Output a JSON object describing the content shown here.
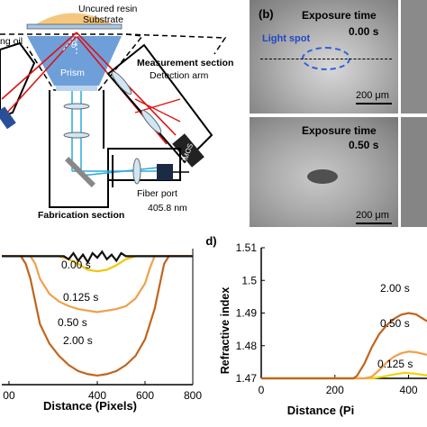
{
  "panel_a": {
    "labels": {
      "resin": "Uncured resin",
      "substrate": "Substrate",
      "oil": "ng oil",
      "theta": "θ",
      "prism": "Prism",
      "measurement": "Measurement section",
      "detection": "Detection arm",
      "cmos": "CMOS",
      "fabrication": "Fabrication section",
      "fiber": "Fiber port",
      "wavelength": "405.8 nm"
    }
  },
  "panel_b": {
    "letter": "(b)",
    "top": {
      "title": "Exposure time",
      "time": "0.00 s",
      "spot": "Light spot",
      "scale": "200 μm"
    },
    "bottom": {
      "title": "Exposure time",
      "time": "0.50 s",
      "scale": "200 μm"
    }
  },
  "chart_data": [
    {
      "type": "line",
      "xlabel": "Distance (Pixels)",
      "ylabel": "",
      "xticks": [
        "00",
        "400",
        "600",
        "800"
      ],
      "xlim": [
        0,
        800
      ],
      "series": [
        {
          "name": "0.00 s",
          "color": "#111111",
          "x": [
            0,
            80,
            160,
            240,
            260,
            280,
            300,
            320,
            340,
            360,
            380,
            400,
            420,
            440,
            460,
            480,
            500,
            520,
            540,
            560,
            640,
            720,
            800
          ],
          "y": [
            0,
            0,
            0,
            0,
            0,
            -0.02,
            0.02,
            -0.03,
            0.01,
            -0.04,
            0.02,
            -0.01,
            0.03,
            -0.02,
            0.01,
            -0.03,
            0.02,
            0,
            0,
            0,
            0,
            0,
            0
          ]
        },
        {
          "name": "0.125 s",
          "color": "#f2c500",
          "x": [
            0,
            80,
            160,
            240,
            280,
            320,
            360,
            400,
            440,
            480,
            520,
            560,
            640,
            720,
            800
          ],
          "y": [
            0,
            0,
            0,
            0,
            -0.02,
            -0.05,
            -0.09,
            -0.1,
            -0.09,
            -0.06,
            -0.02,
            0,
            0,
            0,
            0
          ]
        },
        {
          "name": "0.50 s",
          "color": "#f0a04a",
          "x": [
            0,
            80,
            120,
            140,
            160,
            200,
            240,
            280,
            320,
            360,
            400,
            440,
            480,
            520,
            560,
            600,
            620,
            640,
            680,
            720,
            800
          ],
          "y": [
            0,
            0,
            0,
            -0.05,
            -0.15,
            -0.25,
            -0.3,
            -0.33,
            -0.35,
            -0.36,
            -0.37,
            -0.36,
            -0.35,
            -0.33,
            -0.28,
            -0.18,
            -0.08,
            0,
            0,
            0,
            0
          ]
        },
        {
          "name": "2.00 s",
          "color": "#c0651e",
          "x": [
            0,
            80,
            100,
            120,
            140,
            160,
            200,
            240,
            280,
            320,
            360,
            400,
            440,
            480,
            520,
            560,
            600,
            640,
            660,
            680,
            700,
            720,
            760,
            800
          ],
          "y": [
            0,
            0,
            -0.05,
            -0.15,
            -0.3,
            -0.45,
            -0.58,
            -0.66,
            -0.72,
            -0.76,
            -0.78,
            -0.79,
            -0.78,
            -0.76,
            -0.72,
            -0.66,
            -0.55,
            -0.35,
            -0.2,
            -0.05,
            0,
            0,
            0,
            0
          ]
        }
      ],
      "labels": [
        "0.00 s",
        "0.125 s",
        "0.50 s",
        "2.00 s"
      ]
    },
    {
      "type": "line",
      "letter": "(d)",
      "xlabel": "Distance (Pi",
      "ylabel": "Refractive index",
      "xticks": [
        "0",
        "200",
        "400"
      ],
      "yticks": [
        "1.47",
        "1.48",
        "1.49",
        "1.5",
        "1.51"
      ],
      "xlim": [
        0,
        450
      ],
      "ylim": [
        1.47,
        1.51
      ],
      "series": [
        {
          "name": "0.125 s",
          "color": "#f2d300",
          "x": [
            0,
            100,
            200,
            300,
            330,
            360,
            390,
            420,
            450
          ],
          "y": [
            1.47,
            1.47,
            1.47,
            1.47,
            1.4705,
            1.4712,
            1.4717,
            1.4714,
            1.4709
          ]
        },
        {
          "name": "0.50 s",
          "color": "#f0a04a",
          "x": [
            0,
            100,
            200,
            280,
            300,
            320,
            340,
            360,
            380,
            400,
            420,
            450
          ],
          "y": [
            1.47,
            1.47,
            1.47,
            1.47,
            1.4705,
            1.4725,
            1.4748,
            1.4766,
            1.4777,
            1.4782,
            1.478,
            1.4772
          ]
        },
        {
          "name": "2.00 s",
          "color": "#c0651e",
          "x": [
            0,
            100,
            200,
            250,
            260,
            280,
            300,
            320,
            340,
            360,
            380,
            400,
            420,
            450
          ],
          "y": [
            1.47,
            1.47,
            1.47,
            1.47,
            1.4708,
            1.4745,
            1.4795,
            1.4835,
            1.4862,
            1.4882,
            1.4895,
            1.49,
            1.4896,
            1.4875
          ]
        }
      ],
      "labels": [
        "2.00 s",
        "0.50 s",
        "0.125 s"
      ]
    }
  ]
}
